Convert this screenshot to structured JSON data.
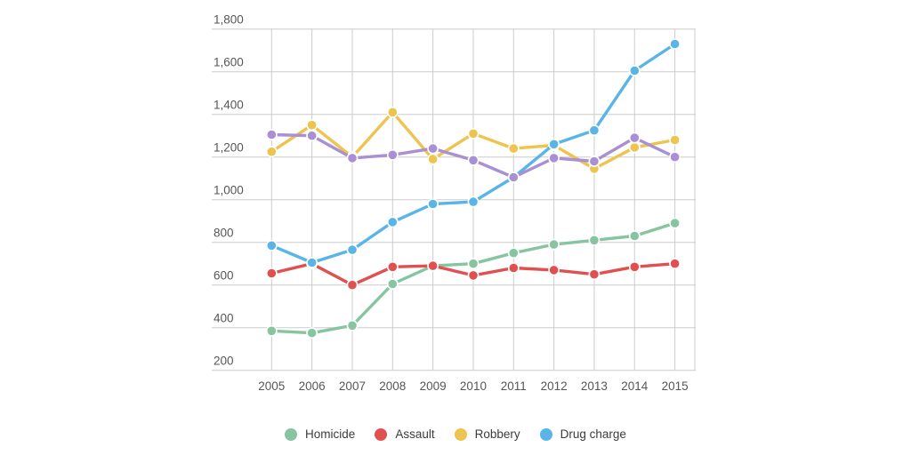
{
  "chart_data": {
    "type": "line",
    "title": "",
    "xlabel": "",
    "ylabel": "",
    "x": [
      "2005",
      "2006",
      "2007",
      "2008",
      "2009",
      "2010",
      "2011",
      "2012",
      "2013",
      "2014",
      "2015"
    ],
    "yticks": [
      "200",
      "400",
      "600",
      "800",
      "1,000",
      "1,200",
      "1,400",
      "1,600",
      "1,800"
    ],
    "ylim": [
      200,
      1800
    ],
    "grid": "on",
    "gridline_color": "#cccccc",
    "tick_label_color": "#565656",
    "series": [
      {
        "key": "homicide",
        "label": "Homicide",
        "color": "#87c4a0",
        "values": [
          385,
          375,
          410,
          605,
          690,
          700,
          750,
          790,
          810,
          830,
          890
        ]
      },
      {
        "key": "assault",
        "label": "Assault",
        "color": "#e14f4f",
        "values": [
          655,
          700,
          600,
          685,
          690,
          645,
          680,
          670,
          650,
          685,
          700
        ]
      },
      {
        "key": "robbery",
        "label": "Robbery",
        "color": "#ecc44e",
        "values": [
          1225,
          1350,
          1200,
          1410,
          1190,
          1310,
          1240,
          1255,
          1145,
          1245,
          1280
        ]
      },
      {
        "key": "drug-charge",
        "label": "Drug charge",
        "color": "#59b5e8",
        "values": [
          785,
          705,
          765,
          895,
          980,
          990,
          1105,
          1260,
          1325,
          1605,
          1730
        ]
      },
      {
        "key": "unlabeled-purple",
        "label": "",
        "color": "#a98fd3",
        "values": [
          1305,
          1300,
          1195,
          1210,
          1240,
          1185,
          1105,
          1195,
          1180,
          1290,
          1200
        ]
      }
    ],
    "legend": {
      "position": "bottom",
      "items": [
        {
          "label": "Homicide",
          "color": "#87c4a0"
        },
        {
          "label": "Assault",
          "color": "#e14f4f"
        },
        {
          "label": "Robbery",
          "color": "#ecc44e"
        },
        {
          "label": "Drug charge",
          "color": "#59b5e8"
        }
      ]
    }
  }
}
